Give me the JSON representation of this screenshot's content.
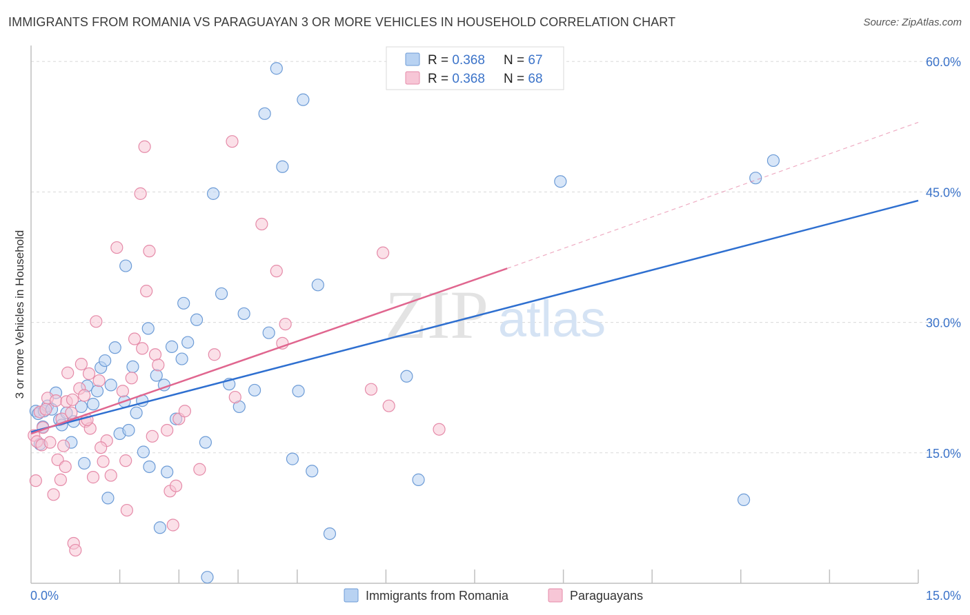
{
  "title": "IMMIGRANTS FROM ROMANIA VS PARAGUAYAN 3 OR MORE VEHICLES IN HOUSEHOLD CORRELATION CHART",
  "source": "Source: ZipAtlas.com",
  "watermark": {
    "zip": "ZIP",
    "atlas": "atlas"
  },
  "legend_top": {
    "r_label": "R = ",
    "n_label": "N = ",
    "rows": [
      {
        "series": "romania",
        "r": "0.368",
        "n": "67"
      },
      {
        "series": "paraguayans",
        "r": "0.368",
        "n": "68"
      }
    ]
  },
  "legend_bottom": [
    {
      "series": "romania",
      "label": "Immigrants from Romania"
    },
    {
      "series": "paraguayans",
      "label": "Paraguayans"
    }
  ],
  "colors": {
    "romania_fill": "#b8d2f2",
    "romania_stroke": "#6c9bd6",
    "romania_line": "#2e6fd0",
    "paraguayans_fill": "#f7c6d6",
    "paraguayans_stroke": "#e58aa8",
    "paraguayans_line": "#e0668f",
    "value_text": "#3b73c9",
    "grid": "#d8d8d8",
    "axis": "#bfbfbf"
  },
  "chart_data": {
    "type": "scatter",
    "title": "IMMIGRANTS FROM ROMANIA VS PARAGUAYAN 3 OR MORE VEHICLES IN HOUSEHOLD CORRELATION CHART",
    "xlabel": "",
    "ylabel": "3 or more Vehicles in Household",
    "xlim": [
      0,
      15
    ],
    "ylim": [
      0,
      61.2
    ],
    "x_tick_labels": [
      {
        "value": 0,
        "label": "0.0%"
      },
      {
        "value": 15,
        "label": "15.0%"
      }
    ],
    "x_minor_ticks": [
      1.5,
      2.5,
      3.5,
      4.5,
      6.0,
      7.5,
      9.0,
      10.5,
      12.0,
      13.5,
      15.0
    ],
    "y_ticks": [
      {
        "value": 15,
        "label": "15.0%"
      },
      {
        "value": 30,
        "label": "30.0%"
      },
      {
        "value": 45,
        "label": "45.0%"
      },
      {
        "value": 60,
        "label": "60.0%"
      }
    ],
    "grid": true,
    "legend_position": "top-center",
    "series": [
      {
        "name": "Immigrants from Romania",
        "key": "romania",
        "trend": {
          "x": [
            0,
            15
          ],
          "y": [
            17.4,
            44.0
          ],
          "dashed_extension": false
        },
        "points": [
          [
            0.08,
            19.8
          ],
          [
            0.12,
            19.5
          ],
          [
            0.15,
            16.0
          ],
          [
            0.2,
            18.0
          ],
          [
            0.22,
            19.8
          ],
          [
            0.28,
            20.4
          ],
          [
            0.35,
            20.0
          ],
          [
            0.42,
            21.9
          ],
          [
            0.48,
            18.8
          ],
          [
            0.52,
            18.2
          ],
          [
            0.6,
            19.6
          ],
          [
            0.68,
            16.2
          ],
          [
            0.72,
            18.6
          ],
          [
            0.85,
            20.3
          ],
          [
            0.95,
            22.7
          ],
          [
            0.9,
            13.8
          ],
          [
            1.05,
            20.6
          ],
          [
            1.12,
            22.1
          ],
          [
            1.18,
            24.8
          ],
          [
            1.25,
            25.6
          ],
          [
            1.3,
            9.8
          ],
          [
            1.35,
            22.8
          ],
          [
            1.42,
            27.1
          ],
          [
            1.5,
            17.2
          ],
          [
            1.58,
            20.9
          ],
          [
            1.6,
            36.5
          ],
          [
            1.65,
            17.6
          ],
          [
            1.72,
            24.9
          ],
          [
            1.78,
            19.6
          ],
          [
            1.88,
            21.0
          ],
          [
            1.9,
            15.1
          ],
          [
            1.98,
            29.3
          ],
          [
            2.0,
            13.4
          ],
          [
            2.12,
            23.9
          ],
          [
            2.18,
            6.4
          ],
          [
            2.25,
            22.8
          ],
          [
            2.3,
            12.8
          ],
          [
            2.38,
            27.2
          ],
          [
            2.45,
            18.9
          ],
          [
            2.55,
            25.8
          ],
          [
            2.58,
            32.2
          ],
          [
            2.65,
            27.7
          ],
          [
            2.8,
            30.3
          ],
          [
            2.95,
            16.2
          ],
          [
            2.98,
            0.7
          ],
          [
            3.08,
            44.8
          ],
          [
            3.22,
            33.3
          ],
          [
            3.35,
            22.9
          ],
          [
            3.52,
            20.3
          ],
          [
            3.6,
            31.0
          ],
          [
            3.78,
            22.2
          ],
          [
            3.95,
            54.0
          ],
          [
            4.02,
            28.8
          ],
          [
            4.25,
            47.9
          ],
          [
            4.15,
            59.2
          ],
          [
            4.42,
            14.3
          ],
          [
            4.52,
            22.1
          ],
          [
            4.6,
            55.6
          ],
          [
            4.75,
            12.9
          ],
          [
            4.85,
            34.3
          ],
          [
            5.05,
            5.7
          ],
          [
            6.35,
            23.8
          ],
          [
            6.55,
            11.9
          ],
          [
            8.95,
            46.2
          ],
          [
            12.05,
            9.6
          ],
          [
            12.25,
            46.6
          ],
          [
            12.55,
            48.6
          ]
        ]
      },
      {
        "name": "Paraguayans",
        "key": "paraguayans",
        "trend": {
          "x": [
            0,
            8.05
          ],
          "y": [
            17.2,
            36.2
          ],
          "dashed_extension": true,
          "dash_to": {
            "x": 15,
            "y": 53.0
          }
        },
        "points": [
          [
            0.05,
            17.0
          ],
          [
            0.08,
            11.8
          ],
          [
            0.1,
            16.3
          ],
          [
            0.15,
            19.7
          ],
          [
            0.18,
            15.9
          ],
          [
            0.2,
            17.9
          ],
          [
            0.25,
            20.0
          ],
          [
            0.28,
            21.3
          ],
          [
            0.32,
            16.2
          ],
          [
            0.38,
            10.2
          ],
          [
            0.42,
            21.0
          ],
          [
            0.45,
            14.2
          ],
          [
            0.5,
            11.9
          ],
          [
            0.52,
            18.9
          ],
          [
            0.55,
            15.8
          ],
          [
            0.58,
            13.4
          ],
          [
            0.62,
            24.2
          ],
          [
            0.68,
            19.6
          ],
          [
            0.72,
            4.6
          ],
          [
            0.75,
            3.8
          ],
          [
            0.82,
            22.4
          ],
          [
            0.85,
            25.2
          ],
          [
            0.9,
            21.6
          ],
          [
            0.92,
            18.6
          ],
          [
            0.98,
            24.1
          ],
          [
            1.0,
            17.8
          ],
          [
            1.05,
            12.2
          ],
          [
            1.1,
            30.1
          ],
          [
            1.15,
            23.3
          ],
          [
            1.22,
            14.0
          ],
          [
            1.28,
            16.4
          ],
          [
            1.35,
            12.4
          ],
          [
            1.45,
            38.6
          ],
          [
            1.55,
            22.1
          ],
          [
            1.6,
            14.1
          ],
          [
            1.62,
            8.4
          ],
          [
            1.7,
            23.6
          ],
          [
            1.75,
            28.1
          ],
          [
            1.85,
            44.8
          ],
          [
            1.88,
            27.0
          ],
          [
            1.92,
            50.2
          ],
          [
            1.95,
            33.6
          ],
          [
            2.0,
            38.2
          ],
          [
            2.05,
            16.9
          ],
          [
            2.1,
            26.3
          ],
          [
            2.15,
            25.1
          ],
          [
            2.3,
            17.6
          ],
          [
            2.35,
            10.6
          ],
          [
            2.4,
            6.7
          ],
          [
            2.45,
            11.2
          ],
          [
            2.5,
            18.9
          ],
          [
            2.6,
            19.8
          ],
          [
            2.85,
            13.1
          ],
          [
            3.1,
            26.3
          ],
          [
            3.4,
            50.8
          ],
          [
            3.45,
            21.4
          ],
          [
            3.9,
            41.3
          ],
          [
            4.15,
            35.9
          ],
          [
            4.25,
            27.6
          ],
          [
            4.3,
            29.8
          ],
          [
            5.75,
            22.3
          ],
          [
            5.95,
            38.0
          ],
          [
            6.05,
            20.4
          ],
          [
            6.9,
            17.7
          ],
          [
            0.6,
            20.9
          ],
          [
            0.7,
            21.1
          ],
          [
            0.95,
            18.8
          ],
          [
            1.18,
            15.6
          ]
        ]
      }
    ]
  }
}
